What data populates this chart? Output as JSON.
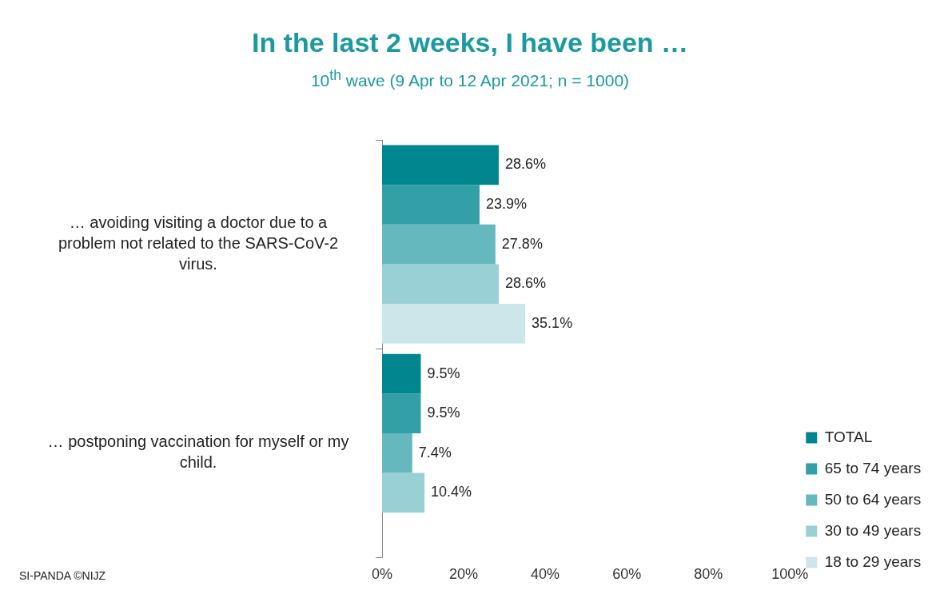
{
  "chart_data": {
    "type": "bar",
    "orientation": "horizontal",
    "title": "In the last 2 weeks, I have been …",
    "subtitle": "10$^{th}$ wave (9 Apr to 12 Apr 2021; n = 1000)",
    "categories": [
      "… avoiding visiting a doctor due to a problem not related to the SARS-CoV-2 virus.",
      "… postponing vaccination for myself or my child."
    ],
    "series": [
      {
        "name": "TOTAL",
        "color": "#00868f",
        "values": [
          28.6,
          9.5
        ],
        "value_labels": [
          "28.6%",
          "9.5%"
        ]
      },
      {
        "name": "65 to 74 years",
        "color": "#33a0a8",
        "values": [
          23.9,
          9.5
        ],
        "value_labels": [
          "23.9%",
          "9.5%"
        ]
      },
      {
        "name": "50 to 64 years",
        "color": "#66b8bf",
        "values": [
          27.8,
          7.4
        ],
        "value_labels": [
          "27.8%",
          "7.4%"
        ]
      },
      {
        "name": "30 to 49 years",
        "color": "#99d0d5",
        "values": [
          28.6,
          10.4
        ],
        "value_labels": [
          "28.6%",
          "10.4%"
        ]
      },
      {
        "name": "18 to 29 years",
        "color": "#cce7ea",
        "values": [
          35.1,
          null
        ],
        "value_labels": [
          "35.1%",
          null
        ]
      }
    ],
    "xlim": [
      0,
      100
    ],
    "xticks": [
      {
        "value": 0,
        "label": "0%"
      },
      {
        "value": 20,
        "label": "20%"
      },
      {
        "value": 40,
        "label": "40%"
      },
      {
        "value": 60,
        "label": "60%"
      },
      {
        "value": 80,
        "label": "80%"
      },
      {
        "value": 100,
        "label": "100%"
      }
    ],
    "grid": false,
    "legend": "right",
    "annotations": [
      "SI-PANDA ©NIJZ"
    ]
  }
}
